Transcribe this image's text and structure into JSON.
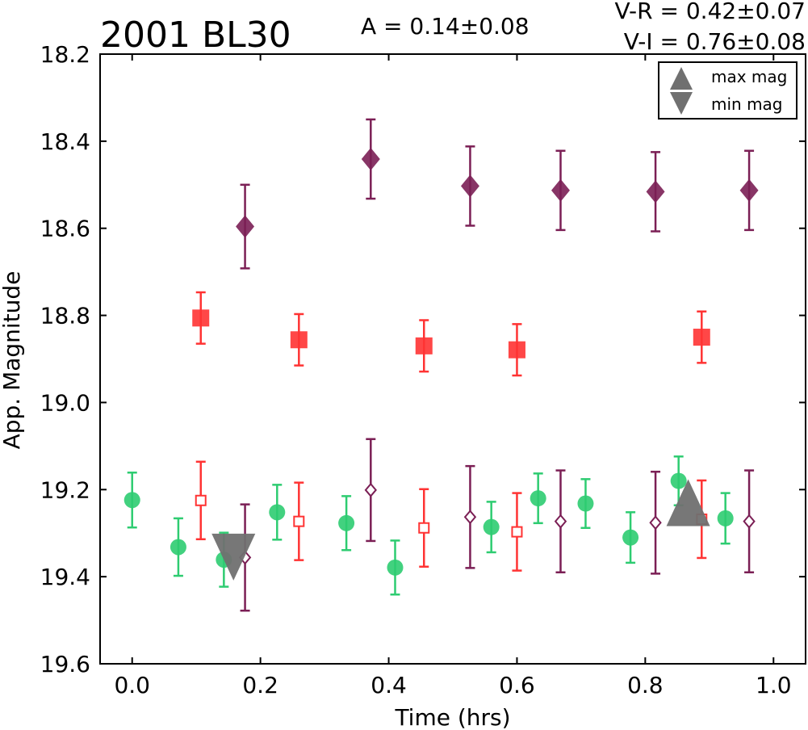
{
  "header": {
    "object_name": "2001 BL30",
    "amplitude": "A  = 0.14±0.08",
    "color_vr": "V-R = 0.42±0.07",
    "color_vi": "V-I  = 0.76±0.08"
  },
  "legend": {
    "max_label": "max mag",
    "min_label": "min mag",
    "placement": "top-right"
  },
  "colors": {
    "green": "#2ecc71",
    "red": "#ff3333",
    "purple": "#7b1f55",
    "marker_gray": "#707070"
  },
  "chart_data": {
    "type": "scatter",
    "xlabel": "Time (hrs)",
    "ylabel": "App. Magnitude",
    "xlim": [
      -0.05,
      1.05
    ],
    "ylim": [
      19.6,
      18.2
    ],
    "y_inverted": true,
    "grid": false,
    "xticks": [
      "0.0",
      "0.2",
      "0.4",
      "0.6",
      "0.8",
      "1.0"
    ],
    "yticks": [
      "18.2",
      "18.4",
      "18.6",
      "18.8",
      "19.0",
      "19.2",
      "19.4",
      "19.6"
    ],
    "series": [
      {
        "marker": "circle",
        "filled": true,
        "color": "#2ecc71",
        "points": [
          {
            "x": 0.0,
            "y": 19.224,
            "err": 0.063
          },
          {
            "x": 0.072,
            "y": 19.332,
            "err": 0.066
          },
          {
            "x": 0.143,
            "y": 19.361,
            "err": 0.062
          },
          {
            "x": 0.226,
            "y": 19.252,
            "err": 0.063
          },
          {
            "x": 0.334,
            "y": 19.277,
            "err": 0.062
          },
          {
            "x": 0.41,
            "y": 19.379,
            "err": 0.062
          },
          {
            "x": 0.56,
            "y": 19.286,
            "err": 0.058
          },
          {
            "x": 0.633,
            "y": 19.22,
            "err": 0.057
          },
          {
            "x": 0.707,
            "y": 19.232,
            "err": 0.056
          },
          {
            "x": 0.777,
            "y": 19.31,
            "err": 0.058
          },
          {
            "x": 0.852,
            "y": 19.18,
            "err": 0.056
          },
          {
            "x": 0.925,
            "y": 19.266,
            "err": 0.058
          }
        ]
      },
      {
        "marker": "square",
        "filled": true,
        "color": "#ff3333",
        "points": [
          {
            "x": 0.107,
            "y": 18.806,
            "err": 0.059
          },
          {
            "x": 0.26,
            "y": 18.856,
            "err": 0.059
          },
          {
            "x": 0.455,
            "y": 18.87,
            "err": 0.059
          },
          {
            "x": 0.6,
            "y": 18.879,
            "err": 0.059
          },
          {
            "x": 0.888,
            "y": 18.85,
            "err": 0.059
          }
        ]
      },
      {
        "marker": "diamond",
        "filled": true,
        "color": "#7b1f55",
        "points": [
          {
            "x": 0.176,
            "y": 18.596,
            "err": 0.096
          },
          {
            "x": 0.372,
            "y": 18.441,
            "err": 0.091
          },
          {
            "x": 0.527,
            "y": 18.503,
            "err": 0.091
          },
          {
            "x": 0.668,
            "y": 18.513,
            "err": 0.091
          },
          {
            "x": 0.816,
            "y": 18.516,
            "err": 0.091
          },
          {
            "x": 0.962,
            "y": 18.513,
            "err": 0.091
          }
        ]
      },
      {
        "marker": "square",
        "filled": false,
        "color": "#ff3333",
        "points": [
          {
            "x": 0.107,
            "y": 19.225,
            "err": 0.089
          },
          {
            "x": 0.26,
            "y": 19.273,
            "err": 0.089
          },
          {
            "x": 0.455,
            "y": 19.288,
            "err": 0.089
          },
          {
            "x": 0.6,
            "y": 19.297,
            "err": 0.089
          },
          {
            "x": 0.888,
            "y": 19.268,
            "err": 0.089
          }
        ]
      },
      {
        "marker": "diamond",
        "filled": false,
        "color": "#7b1f55",
        "points": [
          {
            "x": 0.176,
            "y": 19.356,
            "err": 0.122
          },
          {
            "x": 0.372,
            "y": 19.201,
            "err": 0.117
          },
          {
            "x": 0.527,
            "y": 19.263,
            "err": 0.117
          },
          {
            "x": 0.668,
            "y": 19.273,
            "err": 0.117
          },
          {
            "x": 0.816,
            "y": 19.276,
            "err": 0.117
          },
          {
            "x": 0.962,
            "y": 19.273,
            "err": 0.117
          }
        ]
      }
    ],
    "extrema_markers": [
      {
        "kind": "min",
        "label": "min mag",
        "x": 0.158,
        "y": 19.355
      },
      {
        "kind": "max",
        "label": "max mag",
        "x": 0.867,
        "y": 19.23
      }
    ]
  }
}
